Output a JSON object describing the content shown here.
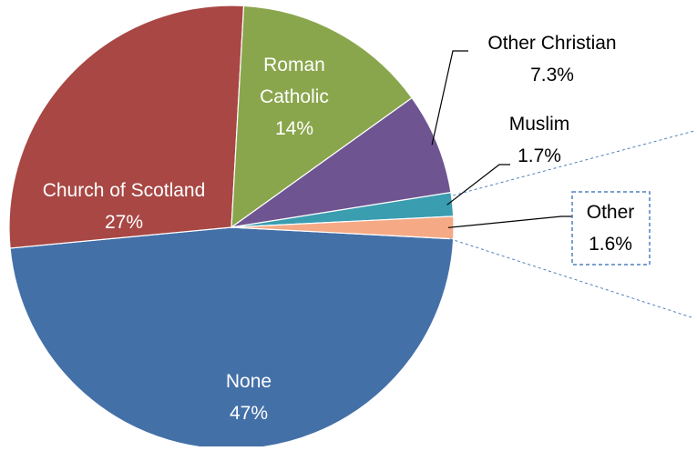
{
  "chart_data": {
    "type": "pie",
    "title": "",
    "slices": [
      {
        "label": "None",
        "value": 47,
        "value_label": "47%",
        "color": "#4470A8"
      },
      {
        "label": "Church of Scotland",
        "value": 27,
        "value_label": "27%",
        "color": "#A84744"
      },
      {
        "label": "Roman Catholic",
        "value": 14,
        "value_label": "14%",
        "color": "#8AA64D"
      },
      {
        "label": "Other Christian",
        "value": 7.3,
        "value_label": "7.3%",
        "color": "#6E5591"
      },
      {
        "label": "Muslim",
        "value": 1.7,
        "value_label": "1.7%",
        "color": "#3A9DB0"
      },
      {
        "label": "Other",
        "value": 1.6,
        "value_label": "1.6%",
        "color": "#F5A985"
      }
    ],
    "legend": "none",
    "leader_line_color": "#000000",
    "highlight_line_color": "#4F81BD"
  }
}
